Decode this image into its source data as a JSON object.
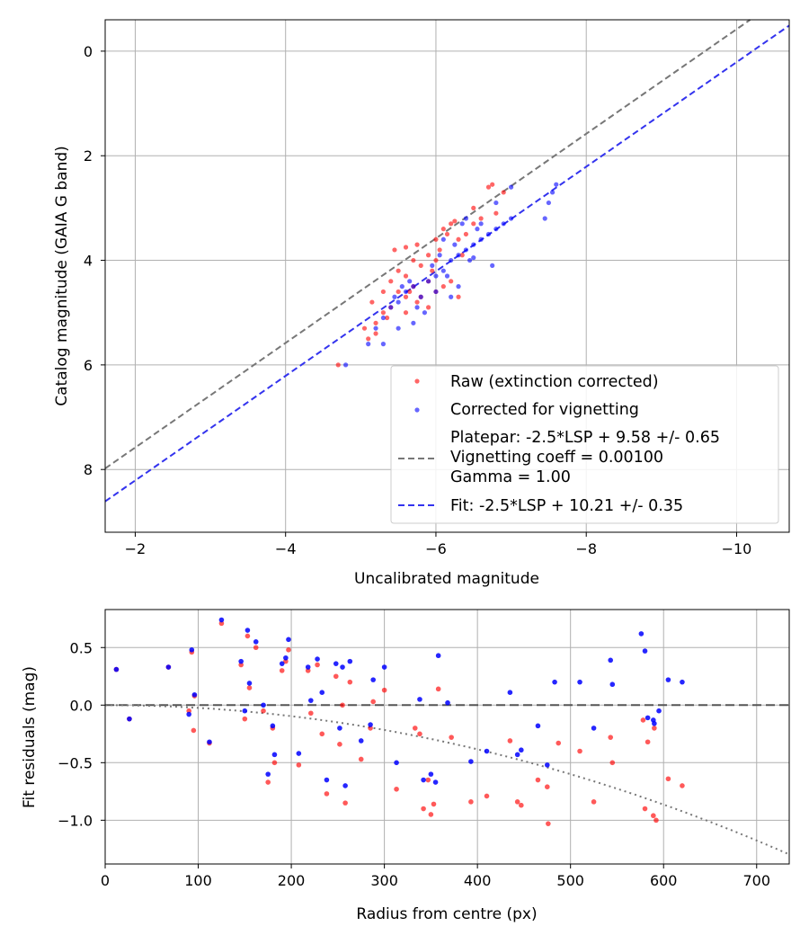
{
  "chart_data": [
    {
      "type": "scatter",
      "xlabel": "Uncalibrated magnitude",
      "ylabel": "Catalog magnitude (GAIA G band)",
      "xlim": [
        -1.6,
        -10.7
      ],
      "ylim": [
        9.2,
        -0.6
      ],
      "xticks": [
        -2,
        -4,
        -6,
        -8,
        -10
      ],
      "xtick_labels": [
        "−2",
        "−4",
        "−6",
        "−8",
        "−10"
      ],
      "yticks": [
        0,
        2,
        4,
        6,
        8
      ],
      "ytick_labels": [
        "0",
        "2",
        "4",
        "6",
        "8"
      ],
      "grid": true,
      "legend_placement": "lower-right",
      "series": [
        {
          "name": "Raw (extinction corrected)",
          "kind": "scatter",
          "color": "#ff0000",
          "points": [
            [
              -4.7,
              6.0
            ],
            [
              -5.1,
              5.5
            ],
            [
              -5.05,
              5.3
            ],
            [
              -5.2,
              5.2
            ],
            [
              -5.3,
              5.0
            ],
            [
              -5.15,
              4.8
            ],
            [
              -5.4,
              4.9
            ],
            [
              -5.5,
              4.6
            ],
            [
              -5.6,
              4.7
            ],
            [
              -5.3,
              4.6
            ],
            [
              -5.7,
              4.5
            ],
            [
              -5.8,
              4.7
            ],
            [
              -5.9,
              4.4
            ],
            [
              -5.5,
              4.2
            ],
            [
              -5.6,
              4.3
            ],
            [
              -6.0,
              4.6
            ],
            [
              -6.1,
              4.5
            ],
            [
              -5.9,
              4.9
            ],
            [
              -6.2,
              4.4
            ],
            [
              -6.3,
              4.7
            ],
            [
              -5.45,
              3.8
            ],
            [
              -5.6,
              3.75
            ],
            [
              -5.75,
              3.7
            ],
            [
              -5.9,
              3.9
            ],
            [
              -6.0,
              3.6
            ],
            [
              -6.15,
              3.5
            ],
            [
              -6.2,
              3.3
            ],
            [
              -6.25,
              3.25
            ],
            [
              -6.1,
              3.4
            ],
            [
              -6.3,
              3.6
            ],
            [
              -6.4,
              3.5
            ],
            [
              -6.5,
              3.3
            ],
            [
              -6.6,
              3.2
            ],
            [
              -6.7,
              2.6
            ],
            [
              -6.75,
              2.55
            ],
            [
              -6.9,
              2.7
            ],
            [
              -6.5,
              3.0
            ],
            [
              -6.8,
              3.1
            ],
            [
              -6.0,
              4.0
            ],
            [
              -5.8,
              4.1
            ],
            [
              -5.7,
              4.0
            ],
            [
              -5.2,
              5.4
            ],
            [
              -5.35,
              5.1
            ],
            [
              -5.6,
              5.0
            ],
            [
              -5.75,
              4.8
            ],
            [
              -6.05,
              3.8
            ],
            [
              -6.35,
              3.9
            ],
            [
              -5.95,
              4.2
            ],
            [
              -5.65,
              4.6
            ],
            [
              -5.4,
              4.4
            ]
          ]
        },
        {
          "name": "Corrected for vignetting",
          "kind": "scatter",
          "color": "#0000ff",
          "points": [
            [
              -4.8,
              6.0
            ],
            [
              -5.1,
              5.6
            ],
            [
              -5.2,
              5.3
            ],
            [
              -5.3,
              5.1
            ],
            [
              -5.4,
              4.9
            ],
            [
              -5.5,
              4.8
            ],
            [
              -5.6,
              4.6
            ],
            [
              -5.7,
              4.5
            ],
            [
              -5.8,
              4.7
            ],
            [
              -5.9,
              4.4
            ],
            [
              -6.0,
              4.3
            ],
            [
              -6.1,
              4.2
            ],
            [
              -6.2,
              4.0
            ],
            [
              -6.3,
              3.9
            ],
            [
              -6.4,
              3.8
            ],
            [
              -6.5,
              3.7
            ],
            [
              -6.6,
              3.6
            ],
            [
              -6.7,
              3.5
            ],
            [
              -6.8,
              3.4
            ],
            [
              -6.9,
              3.3
            ],
            [
              -7.0,
              3.2
            ],
            [
              -7.45,
              3.2
            ],
            [
              -7.5,
              2.9
            ],
            [
              -7.55,
              2.7
            ],
            [
              -7.6,
              2.55
            ],
            [
              -6.75,
              4.1
            ],
            [
              -6.5,
              3.95
            ],
            [
              -6.3,
              4.5
            ],
            [
              -6.2,
              4.7
            ],
            [
              -6.0,
              4.6
            ],
            [
              -5.85,
              5.0
            ],
            [
              -5.7,
              5.2
            ],
            [
              -5.5,
              5.3
            ],
            [
              -5.3,
              5.6
            ],
            [
              -6.1,
              3.6
            ],
            [
              -6.4,
              3.2
            ],
            [
              -6.6,
              3.3
            ],
            [
              -6.8,
              2.9
            ],
            [
              -7.0,
              2.6
            ],
            [
              -5.95,
              4.1
            ],
            [
              -6.25,
              3.7
            ],
            [
              -6.55,
              3.4
            ],
            [
              -5.65,
              4.4
            ],
            [
              -5.45,
              4.7
            ],
            [
              -6.15,
              4.3
            ],
            [
              -6.45,
              4.0
            ],
            [
              -6.05,
              3.9
            ],
            [
              -5.75,
              4.9
            ],
            [
              -6.35,
              3.3
            ],
            [
              -5.55,
              4.5
            ]
          ]
        },
        {
          "name": "Platepar: -2.5*LSP + 9.58 +/- 0.65\nVignetting coeff = 0.00100\nGamma = 1.00",
          "kind": "line",
          "style": "dashed",
          "color": "#777777",
          "slope": 1.0,
          "intercept": 9.58
        },
        {
          "name": "Fit: -2.5*LSP + 10.21 +/- 0.35",
          "kind": "line",
          "style": "dashed",
          "color": "#3333ee",
          "slope": 1.0,
          "intercept": 10.21
        }
      ],
      "legend": [
        "Raw (extinction corrected)",
        "Corrected for vignetting",
        "Platepar: -2.5*LSP + 9.58 +/- 0.65",
        "Vignetting coeff = 0.00100",
        "Gamma = 1.00",
        "Fit: -2.5*LSP + 10.21 +/- 0.35"
      ]
    },
    {
      "type": "scatter",
      "xlabel": "Radius from centre (px)",
      "ylabel": "Fit residuals (mag)",
      "xlim": [
        0,
        735
      ],
      "ylim": [
        -1.38,
        0.83
      ],
      "xticks": [
        0,
        100,
        200,
        300,
        400,
        500,
        600,
        700
      ],
      "xtick_labels": [
        "0",
        "100",
        "200",
        "300",
        "400",
        "500",
        "600",
        "700"
      ],
      "yticks": [
        0.5,
        0.0,
        -0.5,
        -1.0
      ],
      "ytick_labels": [
        "0.5",
        "0.0",
        "−0.5",
        "−1.0"
      ],
      "grid": true,
      "series": [
        {
          "kind": "scatter",
          "color": "#ff0000",
          "points": [
            [
              12,
              0.31
            ],
            [
              26,
              -0.12
            ],
            [
              68,
              0.33
            ],
            [
              90,
              -0.05
            ],
            [
              93,
              0.46
            ],
            [
              95,
              -0.22
            ],
            [
              96,
              0.08
            ],
            [
              112,
              -0.33
            ],
            [
              125,
              0.71
            ],
            [
              146,
              0.35
            ],
            [
              150,
              -0.12
            ],
            [
              153,
              0.6
            ],
            [
              155,
              0.15
            ],
            [
              162,
              0.5
            ],
            [
              170,
              -0.05
            ],
            [
              175,
              -0.67
            ],
            [
              180,
              -0.2
            ],
            [
              182,
              -0.5
            ],
            [
              190,
              0.3
            ],
            [
              194,
              0.38
            ],
            [
              197,
              0.48
            ],
            [
              208,
              -0.52
            ],
            [
              218,
              0.3
            ],
            [
              221,
              -0.07
            ],
            [
              228,
              0.35
            ],
            [
              233,
              -0.25
            ],
            [
              238,
              -0.77
            ],
            [
              248,
              0.25
            ],
            [
              252,
              -0.34
            ],
            [
              255,
              0.0
            ],
            [
              258,
              -0.85
            ],
            [
              263,
              0.2
            ],
            [
              275,
              -0.47
            ],
            [
              285,
              -0.2
            ],
            [
              288,
              0.03
            ],
            [
              300,
              0.13
            ],
            [
              313,
              -0.73
            ],
            [
              333,
              -0.2
            ],
            [
              338,
              -0.25
            ],
            [
              342,
              -0.9
            ],
            [
              347,
              -0.65
            ],
            [
              350,
              -0.95
            ],
            [
              353,
              -0.86
            ],
            [
              358,
              0.14
            ],
            [
              372,
              -0.28
            ],
            [
              393,
              -0.84
            ],
            [
              410,
              -0.79
            ],
            [
              435,
              -0.31
            ],
            [
              443,
              -0.84
            ],
            [
              447,
              -0.87
            ],
            [
              465,
              -0.65
            ],
            [
              475,
              -0.71
            ],
            [
              476,
              -1.03
            ],
            [
              487,
              -0.33
            ],
            [
              510,
              -0.4
            ],
            [
              525,
              -0.84
            ],
            [
              543,
              -0.28
            ],
            [
              545,
              -0.5
            ],
            [
              580,
              -0.9
            ],
            [
              583,
              -0.32
            ],
            [
              589,
              -0.96
            ],
            [
              590,
              -0.2
            ],
            [
              592,
              -1.0
            ],
            [
              605,
              -0.64
            ],
            [
              620,
              -0.7
            ],
            [
              578,
              -0.13
            ]
          ]
        },
        {
          "kind": "scatter",
          "color": "#0000ff",
          "points": [
            [
              12,
              0.31
            ],
            [
              26,
              -0.12
            ],
            [
              68,
              0.33
            ],
            [
              90,
              -0.08
            ],
            [
              93,
              0.48
            ],
            [
              96,
              0.09
            ],
            [
              112,
              -0.32
            ],
            [
              125,
              0.74
            ],
            [
              146,
              0.38
            ],
            [
              150,
              -0.05
            ],
            [
              153,
              0.65
            ],
            [
              155,
              0.19
            ],
            [
              162,
              0.55
            ],
            [
              170,
              0.0
            ],
            [
              175,
              -0.6
            ],
            [
              180,
              -0.18
            ],
            [
              182,
              -0.43
            ],
            [
              190,
              0.36
            ],
            [
              194,
              0.41
            ],
            [
              197,
              0.57
            ],
            [
              208,
              -0.42
            ],
            [
              218,
              0.33
            ],
            [
              221,
              0.04
            ],
            [
              228,
              0.4
            ],
            [
              233,
              0.11
            ],
            [
              238,
              -0.65
            ],
            [
              248,
              0.36
            ],
            [
              252,
              -0.2
            ],
            [
              255,
              0.33
            ],
            [
              258,
              -0.7
            ],
            [
              263,
              0.38
            ],
            [
              275,
              -0.31
            ],
            [
              285,
              -0.17
            ],
            [
              288,
              0.22
            ],
            [
              300,
              0.33
            ],
            [
              313,
              -0.5
            ],
            [
              338,
              0.05
            ],
            [
              342,
              -0.65
            ],
            [
              350,
              -0.6
            ],
            [
              355,
              -0.67
            ],
            [
              358,
              0.43
            ],
            [
              368,
              0.02
            ],
            [
              393,
              -0.49
            ],
            [
              410,
              -0.4
            ],
            [
              435,
              0.11
            ],
            [
              443,
              -0.43
            ],
            [
              447,
              -0.39
            ],
            [
              465,
              -0.18
            ],
            [
              475,
              -0.52
            ],
            [
              483,
              0.2
            ],
            [
              510,
              0.2
            ],
            [
              525,
              -0.2
            ],
            [
              543,
              0.39
            ],
            [
              545,
              0.18
            ],
            [
              576,
              0.62
            ],
            [
              580,
              0.47
            ],
            [
              583,
              -0.11
            ],
            [
              589,
              -0.13
            ],
            [
              590,
              -0.16
            ],
            [
              595,
              -0.05
            ],
            [
              605,
              0.22
            ],
            [
              620,
              0.2
            ]
          ]
        },
        {
          "kind": "line",
          "style": "dashed",
          "color": "#555555",
          "constant": 0.0
        },
        {
          "kind": "line",
          "style": "dotted",
          "color": "#777777",
          "formula": "-k*r^2",
          "k": 2.4e-06
        }
      ]
    }
  ]
}
